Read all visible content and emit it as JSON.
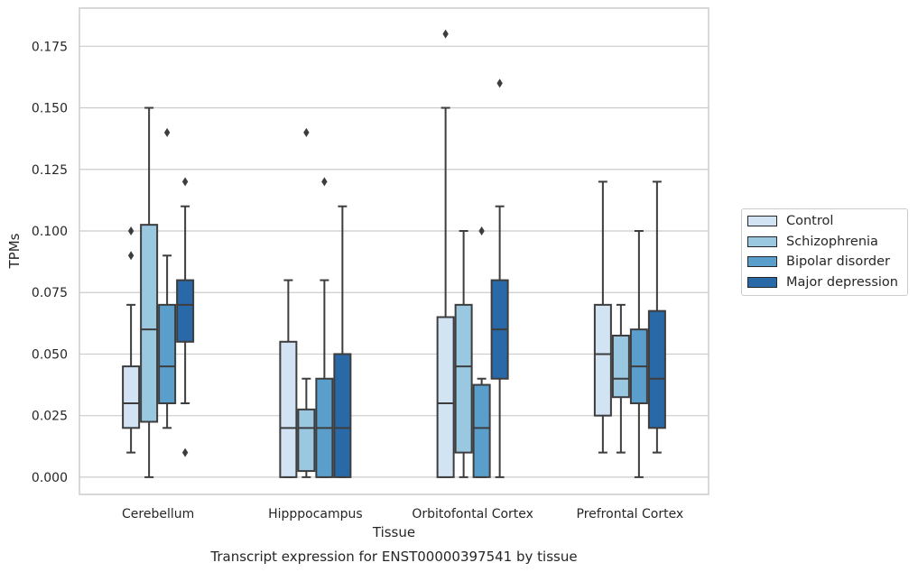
{
  "chart_data": {
    "type": "box",
    "xlabel": "Tissue",
    "ylabel": "TPMs",
    "caption": "Transcript expression for ENST00000397541 by tissue",
    "ylim": [
      -0.007,
      0.1905
    ],
    "yticks": [
      0.0,
      0.025,
      0.05,
      0.075,
      0.1,
      0.125,
      0.15,
      0.175
    ],
    "ytick_labels": [
      "0.000",
      "0.025",
      "0.050",
      "0.075",
      "0.100",
      "0.125",
      "0.150",
      "0.175"
    ],
    "grid": true,
    "legend_position": "right",
    "categories": [
      "Cerebellum",
      "Hipppocampus",
      "Orbitofontal Cortex",
      "Prefrontal Cortex"
    ],
    "series": [
      {
        "name": "Control",
        "color": "#d2e3f3",
        "boxes": [
          {
            "whislo": 0.01,
            "q1": 0.02,
            "med": 0.03,
            "q3": 0.045,
            "whishi": 0.07,
            "fliers": [
              0.09,
              0.1
            ]
          },
          {
            "whislo": 0.0,
            "q1": 0.0,
            "med": 0.02,
            "q3": 0.055,
            "whishi": 0.08,
            "fliers": []
          },
          {
            "whislo": 0.0,
            "q1": 0.0,
            "med": 0.03,
            "q3": 0.065,
            "whishi": 0.15,
            "fliers": [
              0.18
            ]
          },
          {
            "whislo": 0.01,
            "q1": 0.025,
            "med": 0.05,
            "q3": 0.07,
            "whishi": 0.12,
            "fliers": []
          }
        ]
      },
      {
        "name": "Schizophrenia",
        "color": "#9ac8e0",
        "boxes": [
          {
            "whislo": 0.0,
            "q1": 0.0225,
            "med": 0.06,
            "q3": 0.1025,
            "whishi": 0.15,
            "fliers": []
          },
          {
            "whislo": 0.0,
            "q1": 0.0025,
            "med": 0.02,
            "q3": 0.0275,
            "whishi": 0.04,
            "fliers": [
              0.14
            ]
          },
          {
            "whislo": 0.0,
            "q1": 0.01,
            "med": 0.045,
            "q3": 0.07,
            "whishi": 0.1,
            "fliers": []
          },
          {
            "whislo": 0.01,
            "q1": 0.0325,
            "med": 0.04,
            "q3": 0.0575,
            "whishi": 0.07,
            "fliers": []
          }
        ]
      },
      {
        "name": "Bipolar disorder",
        "color": "#5a9fcb",
        "boxes": [
          {
            "whislo": 0.02,
            "q1": 0.03,
            "med": 0.045,
            "q3": 0.07,
            "whishi": 0.09,
            "fliers": [
              0.14
            ]
          },
          {
            "whislo": 0.0,
            "q1": 0.0,
            "med": 0.02,
            "q3": 0.04,
            "whishi": 0.08,
            "fliers": [
              0.12
            ]
          },
          {
            "whislo": 0.0,
            "q1": 0.0,
            "med": 0.02,
            "q3": 0.0375,
            "whishi": 0.04,
            "fliers": [
              0.1
            ]
          },
          {
            "whislo": 0.0,
            "q1": 0.03,
            "med": 0.045,
            "q3": 0.06,
            "whishi": 0.1,
            "fliers": []
          }
        ]
      },
      {
        "name": "Major depression",
        "color": "#2a69a8",
        "boxes": [
          {
            "whislo": 0.03,
            "q1": 0.055,
            "med": 0.07,
            "q3": 0.08,
            "whishi": 0.11,
            "fliers": [
              0.01,
              0.12
            ]
          },
          {
            "whislo": 0.0,
            "q1": 0.0,
            "med": 0.02,
            "q3": 0.05,
            "whishi": 0.11,
            "fliers": []
          },
          {
            "whislo": 0.0,
            "q1": 0.04,
            "med": 0.06,
            "q3": 0.08,
            "whishi": 0.11,
            "fliers": [
              0.16
            ]
          },
          {
            "whislo": 0.01,
            "q1": 0.02,
            "med": 0.04,
            "q3": 0.0675,
            "whishi": 0.12,
            "fliers": []
          }
        ]
      }
    ]
  }
}
